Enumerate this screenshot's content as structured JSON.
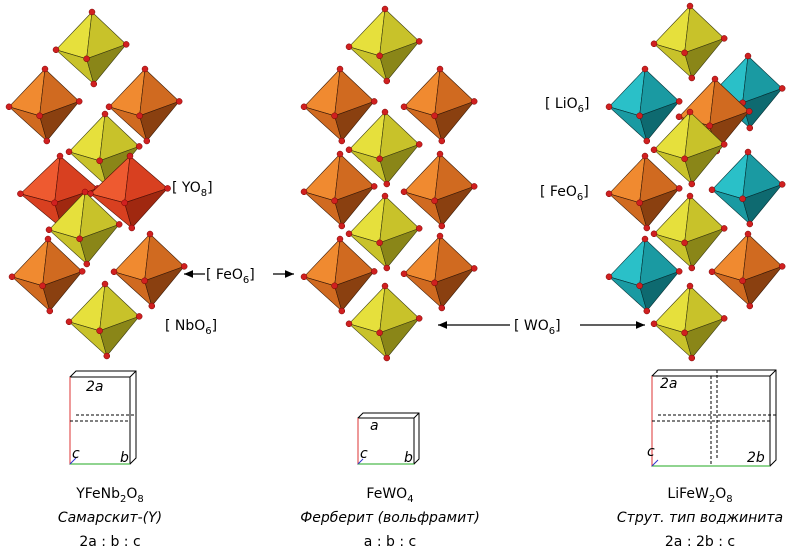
{
  "polyhedron_labels": [
    {
      "parts": [
        "[ YO",
        "8",
        "]"
      ]
    },
    {
      "parts": [
        "[ FeO",
        "6",
        "]"
      ]
    },
    {
      "parts": [
        "[ NbO",
        "6",
        "]"
      ]
    },
    {
      "parts": [
        "[ WO",
        "6",
        "]"
      ]
    },
    {
      "parts": [
        "[ LiO",
        "6",
        "]"
      ]
    },
    {
      "parts": [
        "[ FeO",
        "6",
        "]"
      ]
    }
  ],
  "structures": [
    {
      "formula": [
        "YFeNb",
        "2",
        "O",
        "8"
      ],
      "name": "Самарскит-(Y)",
      "ratio": "2a : b : c",
      "cell_labels": [
        "2a",
        "c",
        "b"
      ]
    },
    {
      "formula": [
        "FeWO",
        "4"
      ],
      "name": "Ферберит (вольфрамит)",
      "ratio": "a : b : c",
      "cell_labels": [
        "a",
        "c",
        "b"
      ]
    },
    {
      "formula": [
        "LiFeW",
        "2",
        "O",
        "8"
      ],
      "name": "Струт. тип воджинита",
      "ratio": "2a : 2b : c",
      "cell_labels": [
        "2a",
        "c",
        "2b"
      ]
    }
  ]
}
